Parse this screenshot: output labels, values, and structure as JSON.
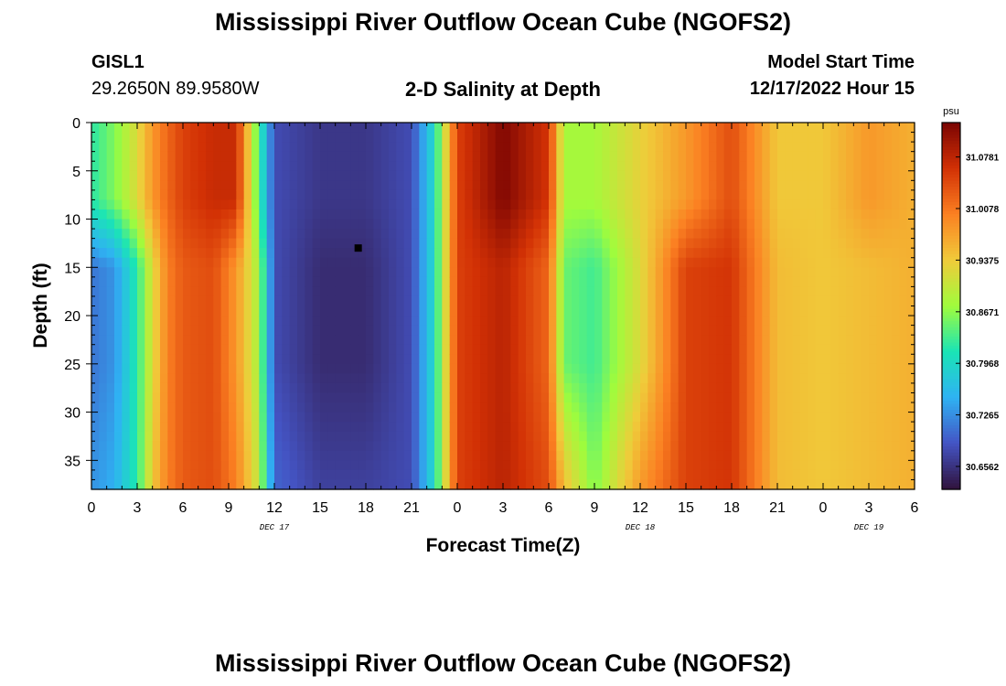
{
  "title": "Mississippi River Outflow Ocean Cube (NGOFS2)",
  "station": {
    "name": "GISL1",
    "coords": "29.2650N  89.9580W"
  },
  "subtitle": "2-D Salinity at Depth",
  "model_start": {
    "label": "Model Start Time",
    "value": "12/17/2022 Hour 15"
  },
  "bottom_title": "Mississippi River Outflow Ocean Cube (NGOFS2)",
  "chart_data": {
    "type": "heatmap",
    "xlabel": "Forecast Time(Z)",
    "ylabel": "Depth (ft)",
    "x_tick_labels": [
      "0",
      "3",
      "6",
      "9",
      "12",
      "15",
      "18",
      "21",
      "0",
      "3",
      "6",
      "9",
      "12",
      "15",
      "18",
      "21",
      "0",
      "3",
      "6"
    ],
    "x_hours": [
      0,
      3,
      6,
      9,
      12,
      15,
      18,
      21,
      24,
      27,
      30,
      33,
      36,
      39,
      42,
      45,
      48,
      51,
      54
    ],
    "xlim": [
      0,
      54
    ],
    "date_labels": [
      {
        "text": "DEC 17",
        "at_hour": 12
      },
      {
        "text": "DEC 18",
        "at_hour": 36
      },
      {
        "text": "DEC 19",
        "at_hour": 51
      }
    ],
    "y_ticks": [
      0,
      5,
      10,
      15,
      20,
      25,
      30,
      35
    ],
    "ylim": [
      0,
      38
    ],
    "y_reversed": true,
    "colorbar": {
      "unit": "psu",
      "labels": [
        "31.0781",
        "31.0078",
        "30.9375",
        "30.8671",
        "30.7968",
        "30.7265",
        "30.6562"
      ],
      "min": 30.625,
      "max": 31.125,
      "colors": [
        "#30123b",
        "#4454c4",
        "#2fb2f3",
        "#1ae4b6",
        "#a0fc3c",
        "#f0cb3a",
        "#fb8022",
        "#d23105",
        "#7a0403"
      ]
    },
    "salinity_profiles": {
      "description_hours": [
        0,
        1.5,
        3,
        4,
        5,
        6,
        8,
        9.5,
        11,
        12,
        15,
        18,
        21,
        22.5,
        24,
        27,
        30,
        31,
        33,
        36,
        39,
        42,
        45,
        48,
        51,
        54
      ],
      "surface": [
        30.82,
        30.86,
        30.92,
        30.98,
        31.02,
        31.05,
        31.07,
        31.07,
        30.83,
        30.68,
        30.66,
        30.66,
        30.68,
        30.8,
        31.05,
        31.12,
        31.06,
        30.88,
        30.88,
        30.93,
        30.98,
        31.04,
        30.94,
        30.94,
        30.98,
        30.96
      ],
      "mid": [
        30.71,
        30.73,
        30.82,
        30.92,
        31.0,
        31.03,
        31.04,
        30.98,
        30.88,
        30.68,
        30.65,
        30.65,
        30.68,
        30.8,
        31.05,
        31.08,
        31.02,
        30.85,
        30.83,
        30.92,
        31.05,
        31.06,
        30.95,
        30.94,
        30.95,
        30.96
      ],
      "deep": [
        30.73,
        30.75,
        30.82,
        30.94,
        31.0,
        31.03,
        31.04,
        31.0,
        30.9,
        30.7,
        30.67,
        30.67,
        30.68,
        30.8,
        31.05,
        31.08,
        31.04,
        30.95,
        30.86,
        30.98,
        31.05,
        31.06,
        30.95,
        30.94,
        30.95,
        30.96
      ]
    },
    "marker": {
      "hour": 17.5,
      "depth": 13
    }
  }
}
